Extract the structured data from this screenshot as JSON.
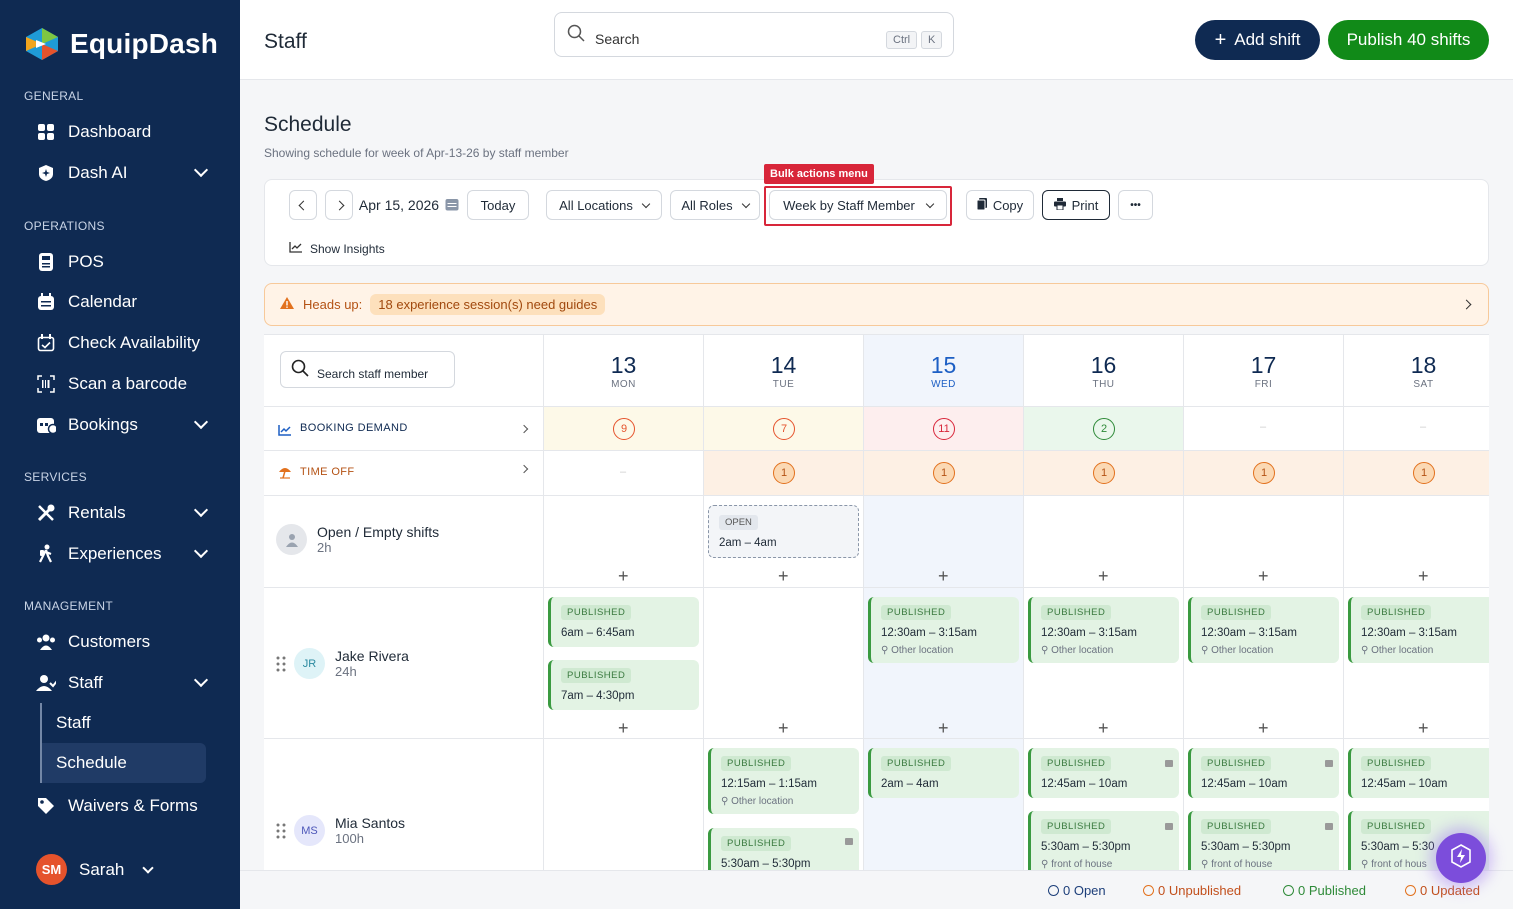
{
  "app": {
    "name": "EquipDash"
  },
  "sidebar": {
    "sections": {
      "general": "GENERAL",
      "operations": "OPERATIONS",
      "services": "SERVICES",
      "management": "MANAGEMENT"
    },
    "items": {
      "dashboard": "Dashboard",
      "dash_ai": "Dash AI",
      "pos": "POS",
      "calendar": "Calendar",
      "check_availability": "Check Availability",
      "scan": "Scan a barcode",
      "bookings": "Bookings",
      "rentals": "Rentals",
      "experiences": "Experiences",
      "customers": "Customers",
      "staff": "Staff",
      "staff_sub": "Staff",
      "schedule_sub": "Schedule",
      "waivers": "Waivers & Forms"
    },
    "user": {
      "initials": "SM",
      "name": "Sarah"
    }
  },
  "header": {
    "title": "Staff",
    "search_placeholder": "Search",
    "kbd1": "Ctrl",
    "kbd2": "K",
    "add_shift": "Add shift",
    "publish": "Publish 40 shifts"
  },
  "schedule": {
    "title": "Schedule",
    "subtitle": "Showing schedule for week of Apr-13-26 by staff member"
  },
  "toolbar": {
    "date": "Apr 15, 2026",
    "today": "Today",
    "locations": "All Locations",
    "roles": "All Roles",
    "view": "Week by Staff Member",
    "bulk_label": "Bulk actions menu",
    "copy": "Copy",
    "print": "Print",
    "more": "•••",
    "insights": "Show Insights"
  },
  "alert": {
    "label": "Heads up:",
    "message": "18 experience session(s) need guides"
  },
  "grid": {
    "search_placeholder": "Search staff member",
    "booking_demand": "BOOKING DEMAND",
    "time_off": "TIME OFF",
    "days": [
      {
        "num": "13",
        "name": "MON",
        "demand": "9",
        "timeoff": "–"
      },
      {
        "num": "14",
        "name": "TUE",
        "demand": "7",
        "timeoff": "1"
      },
      {
        "num": "15",
        "name": "WED",
        "demand": "11",
        "timeoff": "1"
      },
      {
        "num": "16",
        "name": "THU",
        "demand": "2",
        "timeoff": "1"
      },
      {
        "num": "17",
        "name": "FRI",
        "demand": "–",
        "timeoff": "1"
      },
      {
        "num": "18",
        "name": "SAT",
        "demand": "–",
        "timeoff": "1"
      }
    ],
    "open_row": {
      "name": "Open / Empty shifts",
      "hours": "2h",
      "open_badge": "OPEN",
      "open_time": "2am – 4am"
    },
    "staff": [
      {
        "initials": "JR",
        "name": "Jake Rivera",
        "hours": "24h"
      },
      {
        "initials": "MS",
        "name": "Mia Santos",
        "hours": "100h"
      }
    ],
    "published": "PUBLISHED",
    "jake": {
      "mon1": "6am – 6:45am",
      "mon2": "7am – 4:30pm",
      "wed": "12:30am – 3:15am",
      "thu": "12:30am – 3:15am",
      "fri": "12:30am – 3:15am",
      "sat": "12:30am – 3:15am",
      "loc": "Other location"
    },
    "mia": {
      "tue1": "12:15am – 1:15am",
      "tue1_loc": "Other location",
      "tue2": "5:30am – 5:30pm",
      "wed": "2am – 4am",
      "thu1": "12:45am – 10am",
      "thu2": "5:30am – 5:30pm",
      "fri1": "12:45am – 10am",
      "fri2": "5:30am – 5:30pm",
      "sat1": "12:45am – 10am",
      "sat2": "5:30am – 5:30",
      "loc2": "front of house",
      "loc2_short": "front of hous"
    },
    "plus": "+"
  },
  "footer": {
    "open": "0 Open",
    "unpublished": "0 Unpublished",
    "published": "0 Published",
    "updated": "0 Updated"
  },
  "colors": {
    "navy": "#0f2a52",
    "green": "#118a18",
    "red": "#d8263a",
    "orange": "#e2711d",
    "today_bg": "#f1f5fc"
  }
}
